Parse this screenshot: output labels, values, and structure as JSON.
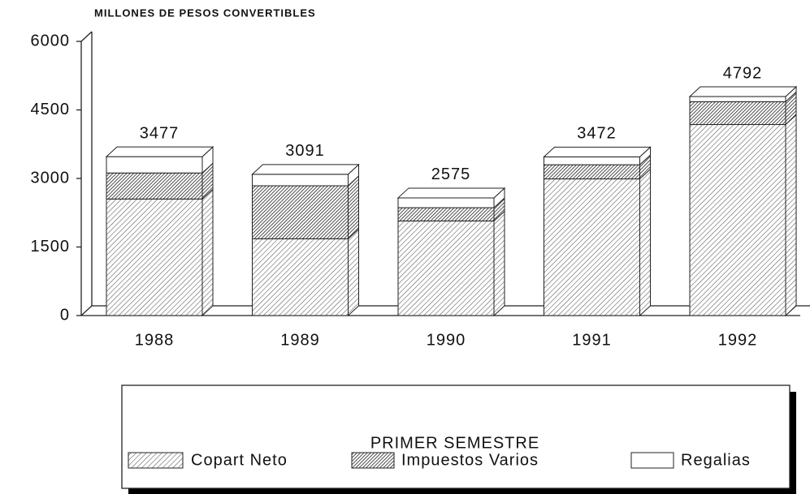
{
  "chart_data": {
    "type": "stacked-bar-3d",
    "y_axis_label": "MILLONES DE PESOS CONVERTIBLES",
    "legend_title": "PRIMER SEMESTRE",
    "categories": [
      "1988",
      "1989",
      "1990",
      "1991",
      "1992"
    ],
    "series": [
      {
        "name": "Copart Neto",
        "color": "#555555",
        "pattern": "light",
        "values": [
          2550,
          1680,
          2070,
          2990,
          4180
        ]
      },
      {
        "name": "Impuestos Varios",
        "color": "#222222",
        "pattern": "dense",
        "values": [
          570,
          1160,
          290,
          310,
          500
        ]
      },
      {
        "name": "Regalias",
        "color": "#ffffff",
        "pattern": "none",
        "values": [
          357,
          251,
          215,
          172,
          112
        ]
      }
    ],
    "totals": [
      3477,
      3091,
      2575,
      3472,
      4792
    ],
    "ylim": [
      0,
      6000
    ],
    "yticks": [
      0,
      1500,
      3000,
      4500,
      6000
    ]
  }
}
